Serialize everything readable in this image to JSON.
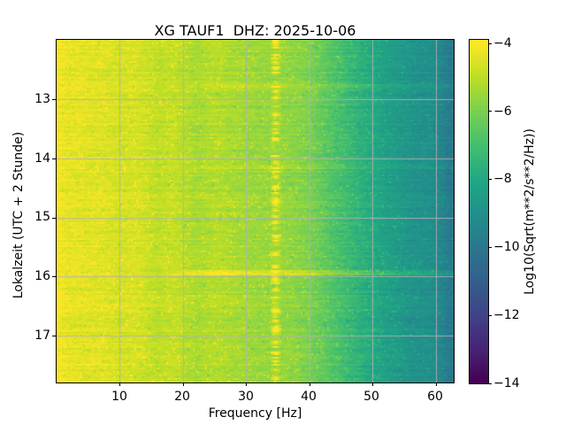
{
  "figure": {
    "title": "XG TAUF1  DHZ: 2025-10-06",
    "xlabel": "Frequency [Hz]",
    "ylabel": "Lokalzeit (UTC + 2 Stunde)",
    "x_ticks": [
      "10",
      "20",
      "30",
      "40",
      "50",
      "60"
    ],
    "y_ticks": [
      "13",
      "14",
      "15",
      "16",
      "17"
    ],
    "colorbar": {
      "label": "Log10(Sqrt(m**2/s**2/Hz))",
      "ticks": [
        "−4",
        "−6",
        "−8",
        "−10",
        "−12",
        "−14"
      ]
    }
  },
  "chart_data": {
    "type": "heatmap",
    "title": "XG TAUF1  DHZ: 2025-10-06",
    "xlabel": "Frequency [Hz]",
    "ylabel": "Lokalzeit (UTC + 2 Stunde)",
    "colorbar_label": "Log10(Sqrt(m**2/s**2/Hz))",
    "x_range_hz": [
      0,
      62.8
    ],
    "x_tick_values": [
      10,
      20,
      30,
      40,
      50,
      60
    ],
    "y_range_hours_local": [
      12.0,
      17.79
    ],
    "y_tick_values": [
      13,
      14,
      15,
      16,
      17
    ],
    "value_range_log10": [
      -14,
      -4
    ],
    "colorbar_tick_values": [
      -4,
      -6,
      -8,
      -10,
      -12,
      -14
    ],
    "colormap": "viridis",
    "grid": true,
    "grid_color": "#b0b0b0",
    "spectrum_profile": {
      "freq_hz": [
        0,
        1.5,
        4,
        8,
        10,
        12,
        14,
        16,
        18,
        20,
        22,
        25,
        28,
        31,
        33.8,
        36,
        38,
        40,
        44,
        48,
        52,
        56,
        59,
        61,
        62.8
      ],
      "log10_amp": [
        -4.05,
        -4.35,
        -4.4,
        -4.5,
        -4.65,
        -4.55,
        -4.75,
        -5.0,
        -4.85,
        -5.05,
        -5.3,
        -5.1,
        -5.3,
        -5.5,
        -5.55,
        -5.6,
        -5.75,
        -6.0,
        -6.8,
        -7.6,
        -8.3,
        -8.85,
        -9.0,
        -9.5,
        -10.2
      ]
    },
    "features": [
      {
        "kind": "vertical-stripe",
        "freq_hz": 34.5,
        "width_hz": 0.9,
        "boost_log10": 1.0,
        "intermittent": true
      },
      {
        "kind": "horizontal-band",
        "time_h": 15.92,
        "height_h": 0.05,
        "boost_log10": 0.95,
        "freq_min_hz": 22
      },
      {
        "kind": "horizontal-band",
        "time_h": 12.77,
        "height_h": 0.04,
        "boost_log10": 0.3,
        "freq_min_hz": 26
      },
      {
        "kind": "horizontal-band",
        "time_h": 14.12,
        "height_h": 0.04,
        "boost_log10": 0.28,
        "freq_min_hz": 26
      }
    ],
    "noise": {
      "seed": 42,
      "row_jitter": 0.18,
      "cell_jitter": 0.45,
      "speckle_prob": 0.05,
      "speckle_boost": 0.5
    }
  },
  "viridis_stops": [
    "#440154",
    "#482475",
    "#414487",
    "#355f8d",
    "#2a788e",
    "#21918c",
    "#22a884",
    "#44bf70",
    "#7ad151",
    "#bddf26",
    "#fde725"
  ]
}
